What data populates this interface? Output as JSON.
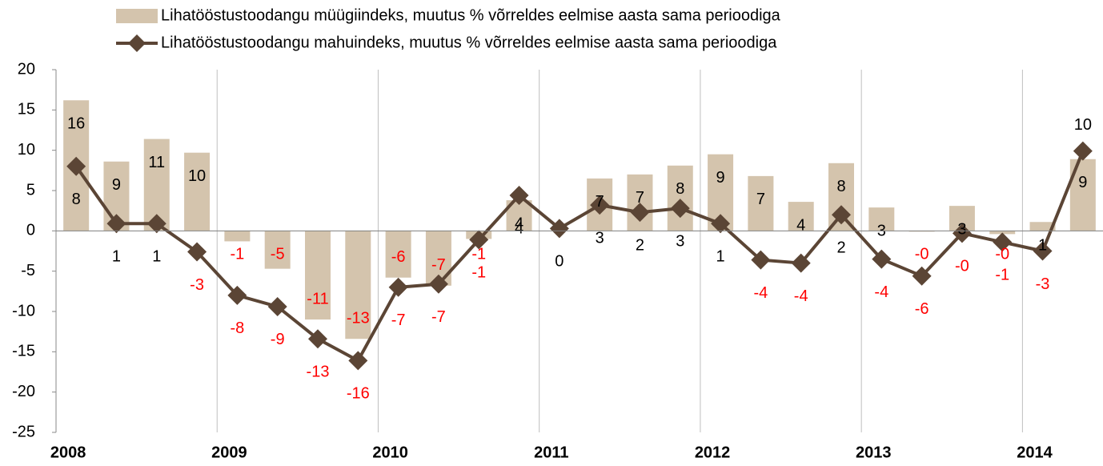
{
  "chart_data": {
    "type": "bar-line",
    "categories": [
      "2008",
      null,
      null,
      null,
      "2009",
      null,
      null,
      null,
      "2010",
      null,
      null,
      null,
      "2011",
      null,
      null,
      null,
      "2012",
      null,
      null,
      null,
      "2013",
      null,
      null,
      null,
      "2014",
      null
    ],
    "series": [
      {
        "name": "Lihatööstustoodangu müügiindeks, muutus % võrreldes eelmise aasta sama perioodiga",
        "type": "bar",
        "color": "#d4c4ad",
        "values": [
          16.2,
          8.6,
          11.4,
          9.7,
          -1.3,
          -4.7,
          -11.0,
          -13.4,
          -5.8,
          -6.8,
          -1.0,
          3.8,
          null,
          6.5,
          7.0,
          8.1,
          9.5,
          6.8,
          3.6,
          8.4,
          2.9,
          -0.1,
          3.1,
          -0.4,
          1.1,
          8.9
        ],
        "value_labels": [
          "16",
          "9",
          "11",
          "10",
          "-1",
          "-5",
          "-11",
          "-13",
          "-6",
          "-7",
          "-1",
          "4",
          null,
          "7",
          "7",
          "8",
          "9",
          "7",
          "4",
          "8",
          "3",
          "-0",
          "3",
          "-0",
          "1",
          "9"
        ]
      },
      {
        "name": "Lihatööstustoodangu mahuindeks, muutus % võrreldes eelmise aasta sama perioodiga",
        "type": "line",
        "color": "#5b4535",
        "values": [
          8.0,
          0.9,
          0.9,
          -2.6,
          -8.0,
          -9.4,
          -13.4,
          -16.1,
          -7.0,
          -6.6,
          -1.1,
          4.4,
          0.3,
          3.2,
          2.3,
          2.8,
          0.9,
          -3.6,
          -4.0,
          2.0,
          -3.5,
          -5.6,
          -0.3,
          -1.4,
          -2.5,
          9.9
        ],
        "value_labels": [
          "8",
          "1",
          "1",
          "-3",
          "-8",
          "-9",
          "-13",
          "-16",
          "-7",
          "-7",
          "-1",
          "4",
          "0",
          "3",
          "2",
          "3",
          "1",
          "-4",
          "-4",
          "2",
          "-4",
          "-6",
          "-0",
          "-1",
          "-3",
          "10"
        ]
      }
    ],
    "ylim": [
      -25,
      20
    ],
    "yticks": [
      -25,
      -20,
      -15,
      -10,
      -5,
      0,
      5,
      10,
      15,
      20
    ],
    "negative_label_color": "#ff0000",
    "legend": "top"
  }
}
